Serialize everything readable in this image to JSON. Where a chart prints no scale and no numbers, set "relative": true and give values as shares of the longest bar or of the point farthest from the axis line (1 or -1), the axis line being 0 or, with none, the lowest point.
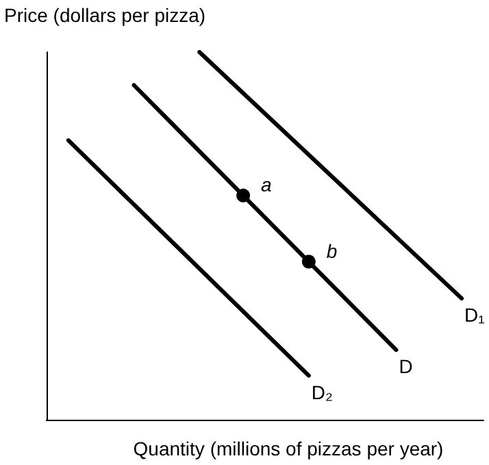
{
  "chart_data": {
    "type": "line",
    "relative": true,
    "ylabel": "Price (dollars per pizza)",
    "xlabel": "Quantity (millions of pizzas per year)",
    "line_style": "solid",
    "grid": false,
    "categories": [
      null,
      null,
      null,
      null,
      null,
      null,
      null,
      null,
      null,
      null,
      null,
      null,
      null,
      null,
      null,
      null,
      null,
      null,
      null,
      null,
      null
    ],
    "series": [
      {
        "name": "D₂",
        "color": "#000000",
        "values": [
          null,
          0.76,
          null,
          null,
          null,
          null,
          null,
          null,
          null,
          null,
          null,
          null,
          0.12,
          null,
          null,
          null,
          null,
          null,
          null,
          null,
          null
        ]
      },
      {
        "name": "D",
        "color": "#000000",
        "values": [
          null,
          null,
          null,
          null,
          0.91,
          null,
          null,
          null,
          null,
          0.61,
          null,
          null,
          0.43,
          null,
          null,
          null,
          0.19,
          null,
          null,
          null,
          null
        ]
      },
      {
        "name": "D₁",
        "color": "#000000",
        "values": [
          null,
          null,
          null,
          null,
          null,
          null,
          null,
          1,
          null,
          null,
          null,
          null,
          null,
          null,
          null,
          null,
          null,
          null,
          null,
          0.33,
          null
        ]
      }
    ],
    "annotations": [
      "a",
      "b"
    ]
  }
}
